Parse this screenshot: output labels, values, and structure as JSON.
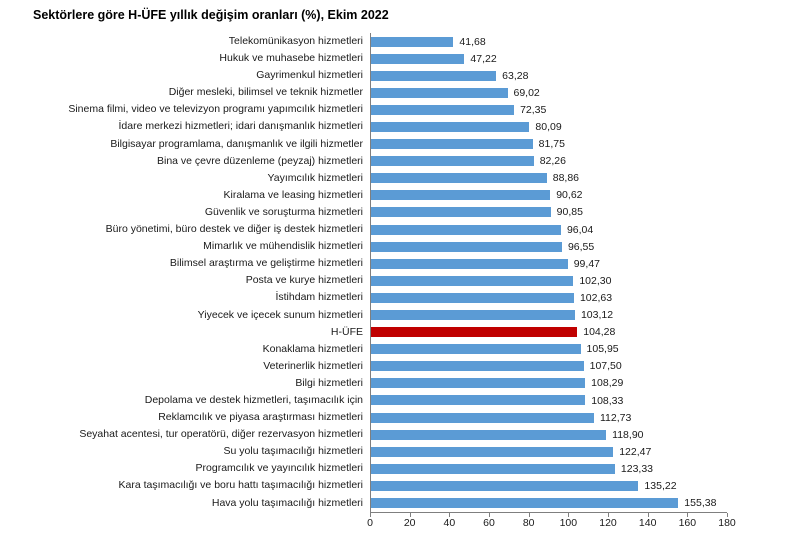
{
  "chart_data": {
    "type": "bar",
    "orientation": "horizontal",
    "title": "Sektörlere göre H-ÜFE yıllık değişim oranları (%), Ekim 2022",
    "categories": [
      "Telekomünikasyon hizmetleri",
      "Hukuk ve muhasebe hizmetleri",
      "Gayrimenkul hizmetleri",
      "Diğer mesleki, bilimsel ve teknik hizmetler",
      "Sinema filmi, video ve televizyon programı yapımcılık hizmetleri",
      "İdare merkezi hizmetleri; idari danışmanlık hizmetleri",
      "Bilgisayar programlama, danışmanlık ve ilgili hizmetler",
      "Bina ve çevre düzenleme (peyzaj) hizmetleri",
      "Yayımcılık hizmetleri",
      "Kiralama ve leasing hizmetleri",
      "Güvenlik ve soruşturma hizmetleri",
      "Büro yönetimi, büro destek ve diğer iş destek hizmetleri",
      "Mimarlık ve mühendislik hizmetleri",
      "Bilimsel araştırma ve geliştirme hizmetleri",
      "Posta ve kurye hizmetleri",
      "İstihdam hizmetleri",
      "Yiyecek ve içecek sunum hizmetleri",
      "H-ÜFE",
      "Konaklama hizmetleri",
      "Veterinerlik hizmetleri",
      "Bilgi hizmetleri",
      "Depolama ve destek hizmetleri, taşımacılık için",
      "Reklamcılık ve piyasa araştırması hizmetleri",
      "Seyahat acentesi, tur operatörü, diğer rezervasyon hizmetleri",
      "Su yolu taşımacılığı hizmetleri",
      "Programcılık ve yayıncılık hizmetleri",
      "Kara taşımacılığı ve boru hattı taşımacılığı hizmetleri",
      "Hava yolu taşımacılığı hizmetleri"
    ],
    "values": [
      41.68,
      47.22,
      63.28,
      69.02,
      72.35,
      80.09,
      81.75,
      82.26,
      88.86,
      90.62,
      90.85,
      96.04,
      96.55,
      99.47,
      102.3,
      102.63,
      103.12,
      104.28,
      105.95,
      107.5,
      108.29,
      108.33,
      112.73,
      118.9,
      122.47,
      123.33,
      135.22,
      155.38
    ],
    "value_labels": [
      "41,68",
      "47,22",
      "63,28",
      "69,02",
      "72,35",
      "80,09",
      "81,75",
      "82,26",
      "88,86",
      "90,62",
      "90,85",
      "96,04",
      "96,55",
      "99,47",
      "102,30",
      "102,63",
      "103,12",
      "104,28",
      "105,95",
      "107,50",
      "108,29",
      "108,33",
      "112,73",
      "118,90",
      "122,47",
      "123,33",
      "135,22",
      "155,38"
    ],
    "highlight_category": "H-ÜFE",
    "bar_color": "#5b9bd5",
    "highlight_color": "#c00000",
    "xlim": [
      0,
      180
    ],
    "x_ticks": [
      0,
      20,
      40,
      60,
      80,
      100,
      120,
      140,
      160,
      180
    ],
    "xlabel": "",
    "ylabel": "",
    "grid": false,
    "legend": false
  }
}
